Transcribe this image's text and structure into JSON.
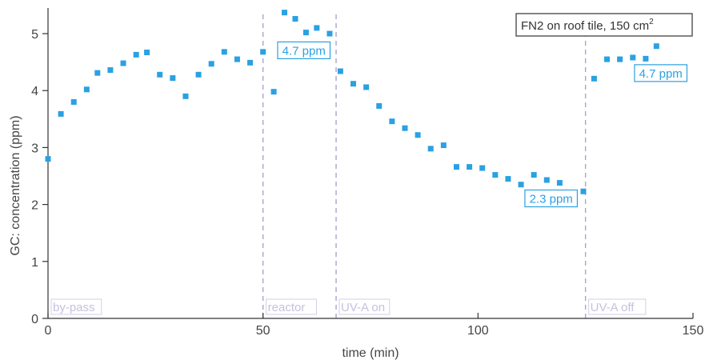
{
  "chart_data": {
    "type": "scatter",
    "title": "",
    "xlabel": "time (min)",
    "ylabel": "GC: concentration (ppm)",
    "xlim": [
      0,
      150
    ],
    "ylim": [
      0,
      5.45
    ],
    "xticks": [
      0,
      50,
      100,
      150
    ],
    "yticks": [
      0,
      1,
      2,
      3,
      4,
      5
    ],
    "grid": false,
    "legend_text": "FN2 on roof tile, 150 cm",
    "legend_superscript": "2",
    "color": "#2aa1e2",
    "x": [
      0,
      3,
      6,
      9,
      11.5,
      14.5,
      17.5,
      20.5,
      23,
      26,
      29,
      32,
      35,
      38,
      41,
      44,
      47,
      50,
      52.5,
      55,
      57.5,
      60,
      62.5,
      65.5,
      68,
      71,
      74,
      77,
      80,
      83,
      86,
      89,
      92,
      95,
      98,
      101,
      104,
      107,
      110,
      113,
      116,
      119,
      122,
      124.5,
      127,
      130,
      133,
      136,
      139,
      141.5
    ],
    "y": [
      2.8,
      3.59,
      3.8,
      4.02,
      4.31,
      4.36,
      4.48,
      4.63,
      4.67,
      4.28,
      4.22,
      3.9,
      4.28,
      4.47,
      4.68,
      4.55,
      4.49,
      4.68,
      3.98,
      5.37,
      5.26,
      5.02,
      5.1,
      5.0,
      4.34,
      4.12,
      4.06,
      3.73,
      3.46,
      3.34,
      3.22,
      2.98,
      3.04,
      2.66,
      2.66,
      2.64,
      2.52,
      2.45,
      2.35,
      2.52,
      2.43,
      2.38,
      2.13,
      2.23,
      4.21,
      4.55,
      4.55,
      4.58,
      4.56,
      4.78
    ],
    "phases": [
      {
        "label": "by-pass",
        "x_start": 0
      },
      {
        "label": "reactor",
        "x_start": 50
      },
      {
        "label": "UV-A on",
        "x_start": 67
      },
      {
        "label": "UV-A off",
        "x_start": 125
      }
    ],
    "annotations": [
      {
        "text": "4.7 ppm",
        "x": 59.5,
        "y": 4.7
      },
      {
        "text": "2.3 ppm",
        "x": 117,
        "y": 2.1
      },
      {
        "text": "4.7 ppm",
        "x": 142.5,
        "y": 4.3
      }
    ]
  }
}
